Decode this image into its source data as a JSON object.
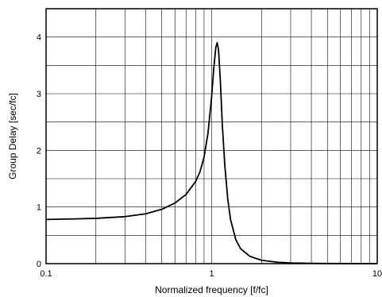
{
  "chart_data": {
    "type": "line",
    "xscale": "log",
    "xlim": [
      0.1,
      10
    ],
    "ylim": [
      0,
      4.5
    ],
    "xticks": [
      0.1,
      1,
      10
    ],
    "xtick_labels": [
      "0.1",
      "1",
      "10"
    ],
    "yticks": [
      0,
      1,
      2,
      3,
      4
    ],
    "ytick_labels": [
      "0",
      "1",
      "2",
      "3",
      "4"
    ],
    "xlabel": "Normalized frequency [f/fc]",
    "ylabel": "Group Delay [sec/fc]",
    "grid": true,
    "series": [
      {
        "color": "#000000",
        "x": [
          0.1,
          0.15,
          0.2,
          0.3,
          0.4,
          0.5,
          0.6,
          0.7,
          0.8,
          0.85,
          0.9,
          0.95,
          1.0,
          1.03,
          1.06,
          1.08,
          1.1,
          1.13,
          1.16,
          1.2,
          1.25,
          1.3,
          1.4,
          1.5,
          1.7,
          2.0,
          2.5,
          3.0,
          4.0,
          5.0,
          7.0,
          10.0
        ],
        "y": [
          0.78,
          0.79,
          0.8,
          0.83,
          0.88,
          0.96,
          1.07,
          1.22,
          1.45,
          1.62,
          1.88,
          2.3,
          2.95,
          3.45,
          3.82,
          3.9,
          3.78,
          3.2,
          2.45,
          1.75,
          1.15,
          0.78,
          0.42,
          0.26,
          0.13,
          0.06,
          0.025,
          0.012,
          0.005,
          0.003,
          0.001,
          0.0
        ]
      }
    ]
  }
}
